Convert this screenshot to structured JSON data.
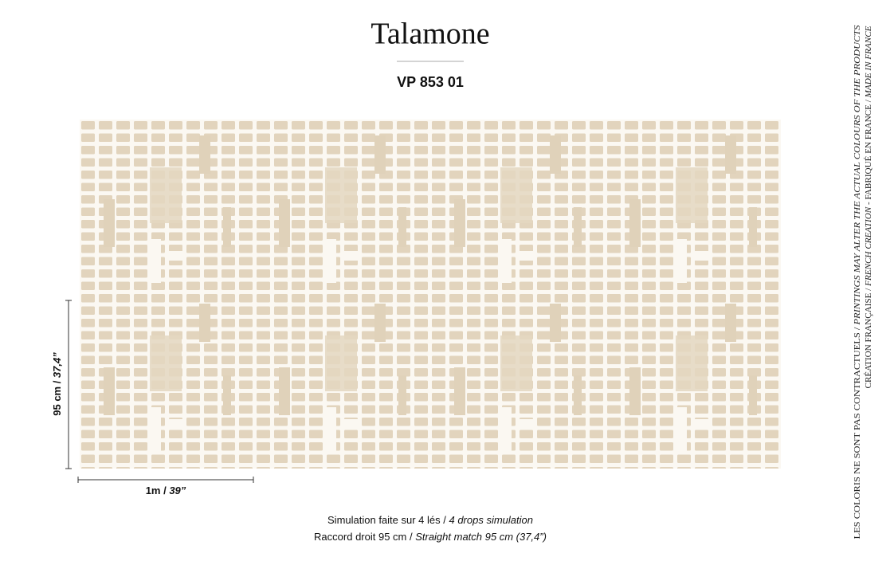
{
  "header": {
    "title": "Talamone",
    "reference": "VP 853 01"
  },
  "dimensions": {
    "height": [
      "95 cm / ",
      "37,4”"
    ],
    "width": [
      "1m / ",
      "39”"
    ]
  },
  "notes": [
    [
      "Simulation faite sur 4 lés / ",
      "4 drops simulation"
    ],
    [
      "Raccord droit 95 cm / ",
      "Straight match 95 cm (37,4”)"
    ]
  ],
  "disclaimer": [
    [
      "LES COLORIS NE SONT PAS CONTRACTUELS / ",
      "PRINTINGS MAY ALTER THE ACTUAL COLOURS OF THE PRODUCTS"
    ],
    [
      "CRÉATION FRANÇAISE / ",
      "FRENCH CREATION",
      " - FABRIQUÉ EN FRANCE / ",
      "MADE IN FRANCE"
    ]
  ]
}
